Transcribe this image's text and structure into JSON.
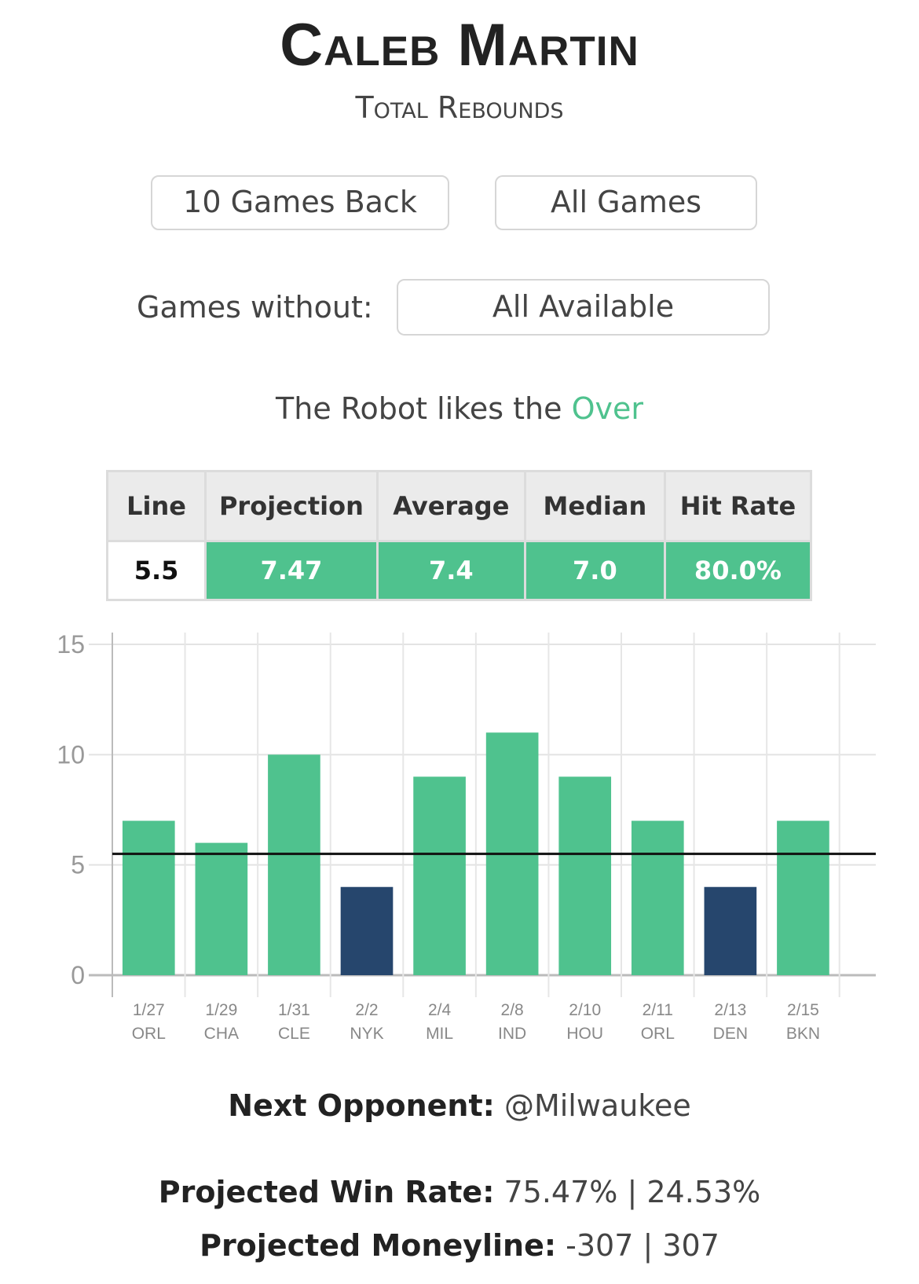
{
  "header": {
    "player_name": "Caleb Martin",
    "stat_label": "Total Rebounds"
  },
  "filters": {
    "games_back": "10 Games Back",
    "game_type": "All Games",
    "games_without_label": "Games without:",
    "games_without_value": "All Available"
  },
  "recommendation": {
    "prefix": "The Robot likes the",
    "pick": "Over",
    "pick_color": "#4fc28e"
  },
  "stats_table": {
    "headers": [
      "Line",
      "Projection",
      "Average",
      "Median",
      "Hit Rate"
    ],
    "values": [
      "5.5",
      "7.47",
      "7.4",
      "7.0",
      "80.0%"
    ]
  },
  "chart_data": {
    "type": "bar",
    "categories": [
      "1/27",
      "1/29",
      "1/31",
      "2/2",
      "2/4",
      "2/8",
      "2/10",
      "2/11",
      "2/13",
      "2/15"
    ],
    "opponents": [
      "ORL",
      "CHA",
      "CLE",
      "NYK",
      "MIL",
      "IND",
      "HOU",
      "ORL",
      "DEN",
      "BKN"
    ],
    "values": [
      7,
      6,
      10,
      4,
      9,
      11,
      9,
      7,
      4,
      7
    ],
    "line": 5.5,
    "ylim": [
      0,
      15
    ],
    "yticks": [
      0,
      5,
      10,
      15
    ],
    "grid": true,
    "colors": {
      "over": "#4fc28e",
      "under": "#26466d",
      "line": "#111111"
    }
  },
  "next_opponent": {
    "label": "Next Opponent:",
    "value": "@Milwaukee"
  },
  "projections": {
    "win_rate_label": "Projected Win Rate:",
    "win_rate_value": "75.47% | 24.53%",
    "moneyline_label": "Projected Moneyline:",
    "moneyline_value": "-307 | 307"
  }
}
